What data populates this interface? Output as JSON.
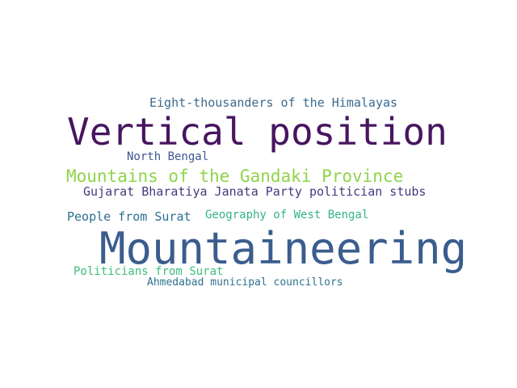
{
  "words": [
    {
      "id": "eight",
      "text": "Eight-thousanders of the Himalayas",
      "color": "#3b6a8e"
    },
    {
      "id": "vertical",
      "text": "Vertical position",
      "color": "#471560"
    },
    {
      "id": "north",
      "text": "North Bengal",
      "color": "#3d5590"
    },
    {
      "id": "gandaki",
      "text": "Mountains of the Gandaki Province",
      "color": "#8fd44a"
    },
    {
      "id": "gujarat",
      "text": "Gujarat Bharatiya Janata Party politician stubs",
      "color": "#433b80"
    },
    {
      "id": "people",
      "text": "People from Surat",
      "color": "#2b6f8e"
    },
    {
      "id": "geo",
      "text": "Geography of West Bengal",
      "color": "#35b485"
    },
    {
      "id": "mount",
      "text": "Mountaineering",
      "color": "#3a5d8e"
    },
    {
      "id": "pol",
      "text": "Politicians from Surat",
      "color": "#3fbc7f"
    },
    {
      "id": "ahm",
      "text": "Ahmedabad municipal councillors",
      "color": "#30728e"
    }
  ]
}
